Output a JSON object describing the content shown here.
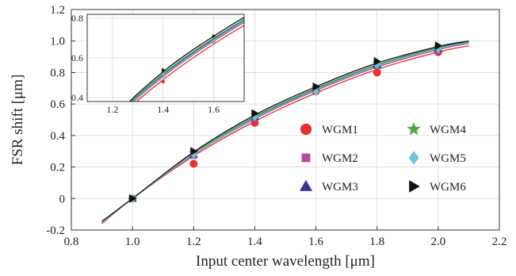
{
  "chart_data": {
    "type": "line",
    "title": "",
    "xlabel": "Input center wavelength [μm]",
    "ylabel": "FSR shift [μm]",
    "xlim": [
      0.8,
      2.2
    ],
    "ylim": [
      -0.2,
      1.2
    ],
    "x_ticks": [
      "0.8",
      "1.0",
      "1.2",
      "1.4",
      "1.6",
      "1.8",
      "2.0",
      "2.2"
    ],
    "y_ticks": [
      "-0.2",
      "0",
      "0.2",
      "0.4",
      "0.6",
      "0.8",
      "1.0",
      "1.2"
    ],
    "grid": true,
    "legend_position": "right-middle",
    "series": [
      {
        "name": "WGM1",
        "color": "#e8302c",
        "marker": "circle",
        "x": [
          1.0,
          1.2,
          1.4,
          1.6,
          1.8,
          2.0
        ],
        "y": [
          0.0,
          0.22,
          0.48,
          0.68,
          0.8,
          0.93
        ],
        "fit_x": [
          0.9,
          1.0,
          1.2,
          1.4,
          1.6,
          1.8,
          2.0,
          2.1
        ],
        "fit_y": [
          -0.16,
          0.0,
          0.27,
          0.49,
          0.67,
          0.82,
          0.93,
          0.97
        ]
      },
      {
        "name": "WGM2",
        "color": "#b5479d",
        "marker": "square",
        "x": [
          1.0,
          1.2,
          1.4,
          1.6,
          1.8,
          2.0
        ],
        "y": [
          0.0,
          0.27,
          0.51,
          0.69,
          0.84,
          0.94
        ],
        "fit_x": [
          0.9,
          1.0,
          1.2,
          1.4,
          1.6,
          1.8,
          2.0,
          2.1
        ],
        "fit_y": [
          -0.155,
          0.0,
          0.28,
          0.505,
          0.685,
          0.835,
          0.945,
          0.985
        ]
      },
      {
        "name": "WGM3",
        "color": "#3b3596",
        "marker": "triangle",
        "x": [
          1.0,
          1.2,
          1.4,
          1.6,
          1.8,
          2.0
        ],
        "y": [
          0.0,
          0.28,
          0.52,
          0.7,
          0.85,
          0.95
        ],
        "fit_x": [
          0.9,
          1.0,
          1.2,
          1.4,
          1.6,
          1.8,
          2.0,
          2.1
        ],
        "fit_y": [
          -0.15,
          0.0,
          0.285,
          0.515,
          0.695,
          0.845,
          0.955,
          0.99
        ]
      },
      {
        "name": "WGM4",
        "color": "#4ca843",
        "marker": "star",
        "x": [
          1.0,
          1.2,
          1.4,
          1.6,
          1.8,
          2.0
        ],
        "y": [
          0.0,
          0.29,
          0.53,
          0.7,
          0.86,
          0.96
        ],
        "fit_x": [
          0.9,
          1.0,
          1.2,
          1.4,
          1.6,
          1.8,
          2.0,
          2.1
        ],
        "fit_y": [
          -0.148,
          0.0,
          0.29,
          0.52,
          0.7,
          0.85,
          0.96,
          0.995
        ]
      },
      {
        "name": "WGM5",
        "color": "#6cc4d0",
        "marker": "diamond",
        "x": [
          1.0,
          1.2,
          1.4,
          1.6,
          1.8,
          2.0
        ],
        "y": [
          0.0,
          0.28,
          0.52,
          0.68,
          0.85,
          0.95
        ],
        "fit_x": [
          0.9,
          1.0,
          1.2,
          1.4,
          1.6,
          1.8,
          2.0,
          2.1
        ],
        "fit_y": [
          -0.152,
          0.0,
          0.283,
          0.51,
          0.69,
          0.842,
          0.952,
          0.988
        ]
      },
      {
        "name": "WGM6",
        "color": "#111111",
        "marker": "triangle-right",
        "x": [
          1.0,
          1.2,
          1.4,
          1.6,
          1.8,
          2.0
        ],
        "y": [
          0.0,
          0.3,
          0.54,
          0.71,
          0.87,
          0.97
        ],
        "fit_x": [
          0.9,
          1.0,
          1.2,
          1.4,
          1.6,
          1.8,
          2.0,
          2.1
        ],
        "fit_y": [
          -0.145,
          0.0,
          0.295,
          0.53,
          0.71,
          0.86,
          0.965,
          1.0
        ]
      }
    ],
    "inset": {
      "xlim": [
        1.1,
        1.72
      ],
      "ylim": [
        0.38,
        0.82
      ],
      "x_ticks": [
        "1.2",
        "1.4",
        "1.6"
      ],
      "y_ticks": [
        "0.4",
        "0.6",
        "0.8"
      ]
    }
  }
}
